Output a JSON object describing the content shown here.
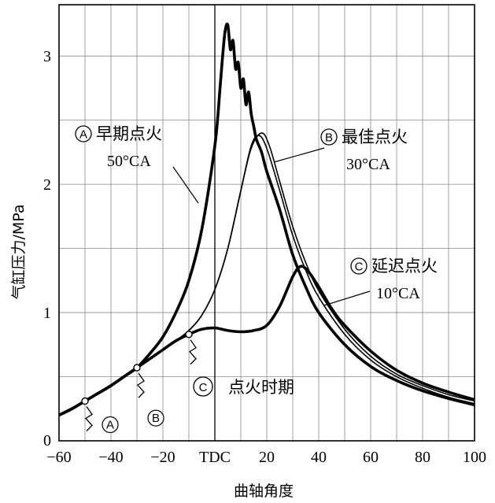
{
  "chart_data": {
    "type": "line",
    "xlabel": "曲轴角度",
    "ylabel": "气缸压力/MPa",
    "xlim": [
      -60,
      100
    ],
    "ylim": [
      0,
      3.4
    ],
    "x_ticks": [
      "−60",
      "−40",
      "−20",
      "TDC",
      "20",
      "40",
      "60",
      "80",
      "100"
    ],
    "y_ticks": [
      "0",
      "1",
      "2",
      "3"
    ],
    "grid": true,
    "series": [
      {
        "name": "早期点火",
        "letter": "A",
        "timing": "50°CA",
        "line_width": 3.6,
        "x": [
          -60,
          -55,
          -50,
          -45,
          -40,
          -35,
          -30,
          -25,
          -20,
          -15,
          -10,
          -5,
          0,
          2,
          3,
          4,
          5,
          6,
          7,
          8,
          9,
          10,
          11,
          12,
          13,
          14,
          15,
          16,
          18,
          20,
          25,
          30,
          35,
          40,
          50,
          60,
          70,
          80,
          90,
          100
        ],
        "y": [
          0.2,
          0.25,
          0.31,
          0.37,
          0.43,
          0.5,
          0.57,
          0.68,
          0.81,
          1.0,
          1.25,
          1.65,
          2.3,
          2.75,
          3.0,
          3.2,
          3.24,
          3.05,
          3.12,
          2.9,
          2.95,
          2.75,
          2.82,
          2.62,
          2.72,
          2.55,
          2.45,
          2.35,
          2.25,
          2.1,
          1.8,
          1.45,
          1.2,
          1.0,
          0.75,
          0.58,
          0.47,
          0.39,
          0.33,
          0.28
        ]
      },
      {
        "name": "最佳点火",
        "letter": "B",
        "timing": "30°CA",
        "line_width": 1.6,
        "x": [
          -60,
          -55,
          -50,
          -45,
          -40,
          -35,
          -30,
          -25,
          -20,
          -15,
          -10,
          -5,
          0,
          5,
          10,
          14,
          17,
          20,
          25,
          30,
          35,
          40,
          50,
          60,
          70,
          80,
          90,
          100
        ],
        "y": [
          0.2,
          0.25,
          0.31,
          0.37,
          0.43,
          0.5,
          0.57,
          0.64,
          0.71,
          0.78,
          0.86,
          0.98,
          1.18,
          1.5,
          1.95,
          2.3,
          2.38,
          2.28,
          1.95,
          1.6,
          1.33,
          1.12,
          0.83,
          0.63,
          0.5,
          0.41,
          0.34,
          0.29
        ]
      },
      {
        "name": "最佳点火",
        "letter": "B",
        "timing": "30°CA",
        "line_width": 1.6,
        "x": [
          -60,
          -55,
          -50,
          -45,
          -40,
          -35,
          -30,
          -25,
          -20,
          -15,
          -10,
          -5,
          0,
          5,
          10,
          14,
          18,
          21,
          25,
          30,
          35,
          40,
          50,
          60,
          70,
          80,
          90,
          100
        ],
        "y": [
          0.2,
          0.25,
          0.31,
          0.37,
          0.43,
          0.5,
          0.57,
          0.64,
          0.71,
          0.78,
          0.86,
          0.98,
          1.18,
          1.5,
          1.95,
          2.28,
          2.4,
          2.3,
          2.02,
          1.67,
          1.39,
          1.17,
          0.87,
          0.66,
          0.52,
          0.43,
          0.36,
          0.31
        ]
      },
      {
        "name": "延迟点火",
        "letter": "C",
        "timing": "10°CA",
        "line_width": 3.6,
        "x": [
          -60,
          -55,
          -50,
          -45,
          -40,
          -35,
          -30,
          -25,
          -20,
          -15,
          -10,
          -5,
          0,
          5,
          10,
          15,
          20,
          25,
          30,
          33,
          36,
          40,
          45,
          50,
          60,
          70,
          80,
          90,
          100
        ],
        "y": [
          0.2,
          0.25,
          0.31,
          0.37,
          0.43,
          0.5,
          0.57,
          0.64,
          0.71,
          0.78,
          0.83,
          0.87,
          0.88,
          0.86,
          0.85,
          0.86,
          0.9,
          1.05,
          1.28,
          1.36,
          1.32,
          1.2,
          1.03,
          0.9,
          0.7,
          0.55,
          0.45,
          0.38,
          0.32
        ]
      }
    ],
    "ignition_points": [
      {
        "label": "A",
        "x": -50,
        "y": 0.31
      },
      {
        "label": "B",
        "x": -30,
        "y": 0.57
      },
      {
        "label": "C",
        "x": -10,
        "y": 0.83
      }
    ],
    "annotations": {
      "a_name": "早期点火",
      "a_timing": "50°CA",
      "b_name": "最佳点火",
      "b_timing": "30°CA",
      "c_name": "延迟点火",
      "c_timing": "10°CA",
      "ignition_label": "点火时期",
      "letter_a": "A",
      "letter_b": "B",
      "letter_c": "C"
    }
  }
}
